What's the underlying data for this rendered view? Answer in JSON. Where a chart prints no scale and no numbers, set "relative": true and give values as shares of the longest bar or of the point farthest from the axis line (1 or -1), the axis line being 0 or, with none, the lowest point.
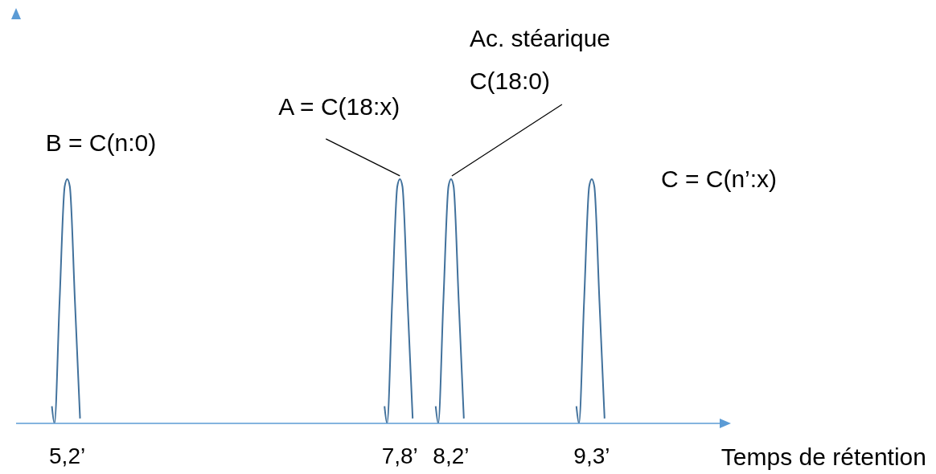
{
  "chart_data": {
    "type": "line",
    "relative": true,
    "xlabel": "Temps de rétention",
    "xlim": [
      4.8,
      10.3
    ],
    "xticks": [
      {
        "value": 5.2,
        "label": "5,2’"
      },
      {
        "value": 7.8,
        "label": "7,8’"
      },
      {
        "value": 8.2,
        "label": "8,2’"
      },
      {
        "value": 9.3,
        "label": "9,3’"
      }
    ],
    "series": [
      {
        "color": "#41719c",
        "x": [
          5.08,
          5.1,
          5.14,
          5.18,
          5.2,
          5.22,
          5.26,
          5.3,
          5.5,
          7.68,
          7.7,
          7.74,
          7.78,
          7.8,
          7.82,
          7.86,
          7.9,
          8.0,
          8.08,
          8.1,
          8.14,
          8.18,
          8.2,
          8.22,
          8.26,
          8.3,
          8.8,
          9.18,
          9.2,
          9.24,
          9.28,
          9.3,
          9.32,
          9.36,
          9.4
        ],
        "values": [
          0.07,
          0,
          0.5,
          0.97,
          1,
          0.97,
          0.5,
          0.02,
          null,
          0.07,
          0,
          0.5,
          0.97,
          1,
          0.97,
          0.5,
          0.02,
          null,
          0.07,
          0,
          0.5,
          0.97,
          1,
          0.97,
          0.5,
          0.02,
          null,
          0.07,
          0,
          0.5,
          0.97,
          1,
          0.97,
          0.5,
          0.02
        ]
      }
    ],
    "annotations": [
      {
        "text": "B = C(n:0)",
        "x": 5.2,
        "y": 1
      },
      {
        "text": "A = C(18:x)",
        "x": 7.8,
        "y": 1
      },
      {
        "text": "Ac. stéarique\nC(18:0)",
        "x": 8.2,
        "y": 1
      },
      {
        "text": "C = C(n’:x)",
        "x": 9.3,
        "y": 1
      }
    ],
    "marker": "none",
    "line_style": "solid"
  }
}
